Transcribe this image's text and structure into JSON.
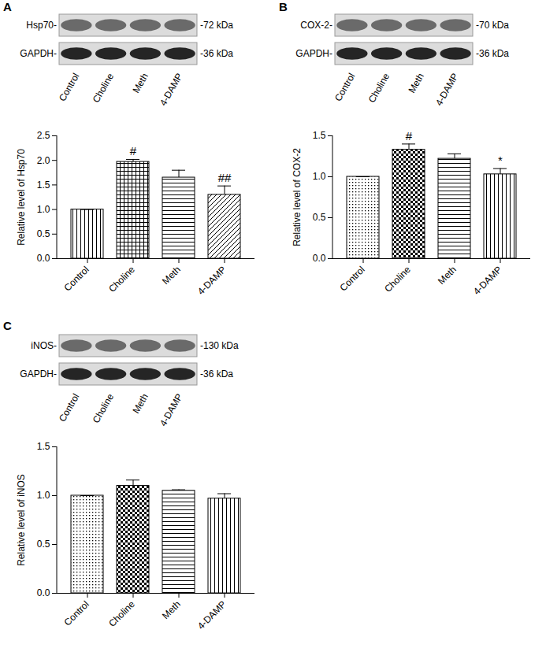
{
  "chart_data": [
    {
      "type": "bar",
      "panel_label": "A",
      "blot_rows": [
        {
          "label": "Hsp70-",
          "size": "-72 kDa"
        },
        {
          "label": "GAPDH-",
          "size": "-36 kDa"
        }
      ],
      "categories": [
        "Control",
        "Choline",
        "Meth",
        "4-DAMP"
      ],
      "values": [
        1.0,
        1.97,
        1.65,
        1.3
      ],
      "errors": [
        0,
        0.05,
        0.15,
        0.18
      ],
      "annotations": [
        null,
        "#",
        null,
        "##"
      ],
      "y_label": "Relative level of Hsp70",
      "ylim": [
        0,
        2.5
      ],
      "yticks": [
        {
          "value": 0,
          "label": "0.0"
        },
        0.5,
        {
          "value": 1,
          "label": "1.0"
        },
        1.5,
        {
          "value": 2,
          "label": "2.0"
        },
        2.5
      ]
    },
    {
      "type": "bar",
      "panel_label": "B",
      "blot_rows": [
        {
          "label": "COX-2-",
          "size": "-70 kDa"
        },
        {
          "label": "GAPDH-",
          "size": "-36 kDa"
        }
      ],
      "categories": [
        "Control",
        "Choline",
        "Meth",
        "4-DAMP"
      ],
      "values": [
        1.0,
        1.33,
        1.22,
        1.03
      ],
      "errors": [
        0,
        0.07,
        0.06,
        0.07
      ],
      "annotations": [
        null,
        "#",
        null,
        "*"
      ],
      "y_label": "Relative level of COX-2",
      "ylim": [
        0,
        1.5
      ],
      "yticks": [
        {
          "value": 0,
          "label": "0.0"
        },
        0.5,
        {
          "value": 1,
          "label": "1.0"
        },
        1.5
      ]
    },
    {
      "type": "bar",
      "panel_label": "C",
      "blot_rows": [
        {
          "label": "iNOS-",
          "size": "-130 kDa"
        },
        {
          "label": "GAPDH-",
          "size": "-36 kDa"
        }
      ],
      "categories": [
        "Control",
        "Choline",
        "Meth",
        "4-DAMP"
      ],
      "values": [
        1.0,
        1.1,
        1.05,
        0.97
      ],
      "errors": [
        0,
        0.06,
        0.01,
        0.05
      ],
      "y_label": "Relative level of iNOS",
      "ylim": [
        0,
        1.5
      ],
      "yticks": [
        {
          "value": 0,
          "label": "0.0"
        },
        0.5,
        {
          "value": 1,
          "label": "1.0"
        },
        1.5
      ]
    }
  ]
}
